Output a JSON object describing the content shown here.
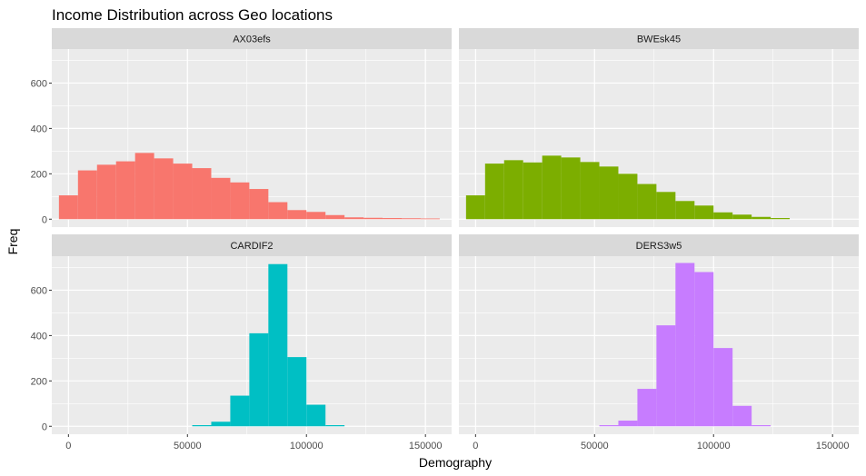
{
  "chart_data": {
    "type": "bar",
    "title": "Income Distribution across Geo locations",
    "xlabel": "Demography",
    "ylabel": "Freq",
    "xlim": [
      -7000,
      161000
    ],
    "ylim": [
      -35,
      750
    ],
    "x_ticks": [
      0,
      50000,
      100000,
      150000
    ],
    "x_tick_labels": [
      "0",
      "50000",
      "100000",
      "150000"
    ],
    "y_ticks": [
      0,
      200,
      400,
      600
    ],
    "y_tick_labels": [
      "0",
      "200",
      "400",
      "600"
    ],
    "grid": true,
    "legend": "none",
    "bin_width": 8000,
    "bin_start": -4000,
    "panels": [
      {
        "name": "AX03efs",
        "color": "#F8766D",
        "counts": [
          105,
          215,
          240,
          255,
          292,
          268,
          245,
          225,
          182,
          162,
          133,
          75,
          40,
          32,
          18,
          8,
          6,
          5,
          4,
          3
        ]
      },
      {
        "name": "BWEsk45",
        "color": "#7CAE00",
        "counts": [
          105,
          245,
          260,
          250,
          280,
          272,
          252,
          232,
          200,
          155,
          120,
          80,
          60,
          30,
          20,
          10,
          5
        ]
      },
      {
        "name": "CARDIF2",
        "color": "#00BFC4",
        "counts": [
          0,
          0,
          0,
          0,
          0,
          0,
          0,
          5,
          20,
          135,
          410,
          715,
          305,
          95,
          5
        ]
      },
      {
        "name": "DERS3w5",
        "color": "#C77CFF",
        "counts": [
          0,
          0,
          0,
          0,
          0,
          0,
          0,
          5,
          25,
          165,
          445,
          720,
          680,
          345,
          90,
          5
        ]
      }
    ]
  }
}
